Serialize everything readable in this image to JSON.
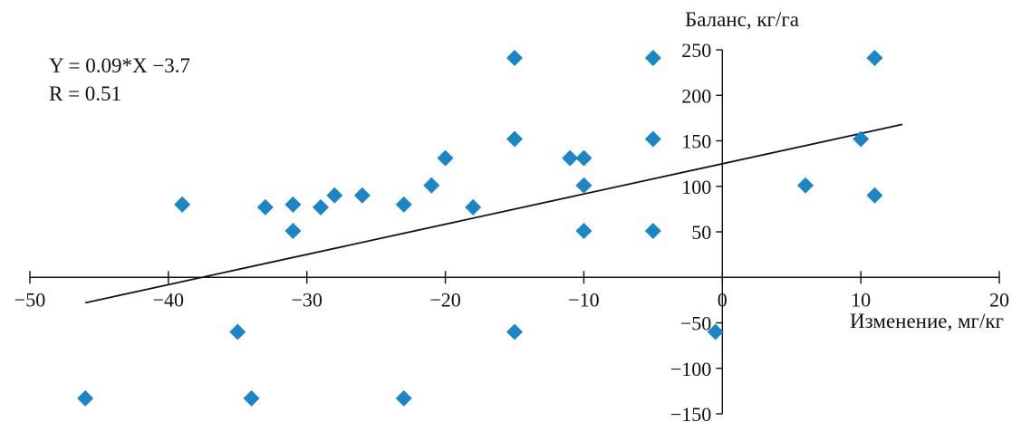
{
  "chart_data": {
    "type": "scatter",
    "title": "",
    "xlabel": "Изменение, мг/кг",
    "ylabel": "Баланс, кг/га",
    "xlim": [
      -50,
      20
    ],
    "ylim": [
      -150,
      250
    ],
    "x_ticks": [
      -50,
      -40,
      -30,
      -20,
      -10,
      0,
      10,
      20
    ],
    "y_ticks": [
      -150,
      -100,
      -50,
      50,
      100,
      150,
      200,
      250
    ],
    "grid": false,
    "legend": "none",
    "annotation": {
      "equation": "Y = 0.09*X −3.7",
      "r_value": "R = 0.51"
    },
    "trendline": {
      "x": [
        -46,
        13
      ],
      "y": [
        -28,
        168
      ]
    },
    "marker_color": "#1a86c6",
    "series": [
      {
        "marker": "diamond",
        "points": [
          {
            "x": -46,
            "y": -133
          },
          {
            "x": -39,
            "y": 80
          },
          {
            "x": -35,
            "y": -60
          },
          {
            "x": -34,
            "y": -133
          },
          {
            "x": -33,
            "y": 77
          },
          {
            "x": -31,
            "y": 80
          },
          {
            "x": -31,
            "y": 51
          },
          {
            "x": -29,
            "y": 77
          },
          {
            "x": -28,
            "y": 90
          },
          {
            "x": -26,
            "y": 90
          },
          {
            "x": -23,
            "y": 80
          },
          {
            "x": -23,
            "y": -133
          },
          {
            "x": -21,
            "y": 101
          },
          {
            "x": -20,
            "y": 131
          },
          {
            "x": -18,
            "y": 77
          },
          {
            "x": -15,
            "y": 241
          },
          {
            "x": -15,
            "y": 152
          },
          {
            "x": -15,
            "y": -60
          },
          {
            "x": -11,
            "y": 131
          },
          {
            "x": -10,
            "y": 131
          },
          {
            "x": -10,
            "y": 101
          },
          {
            "x": -10,
            "y": 51
          },
          {
            "x": -5,
            "y": 241
          },
          {
            "x": -5,
            "y": 152
          },
          {
            "x": -5,
            "y": 51
          },
          {
            "x": -0.5,
            "y": -60
          },
          {
            "x": 6,
            "y": 101
          },
          {
            "x": 10,
            "y": 152
          },
          {
            "x": 11,
            "y": 241
          },
          {
            "x": 11,
            "y": 90
          }
        ]
      }
    ]
  }
}
